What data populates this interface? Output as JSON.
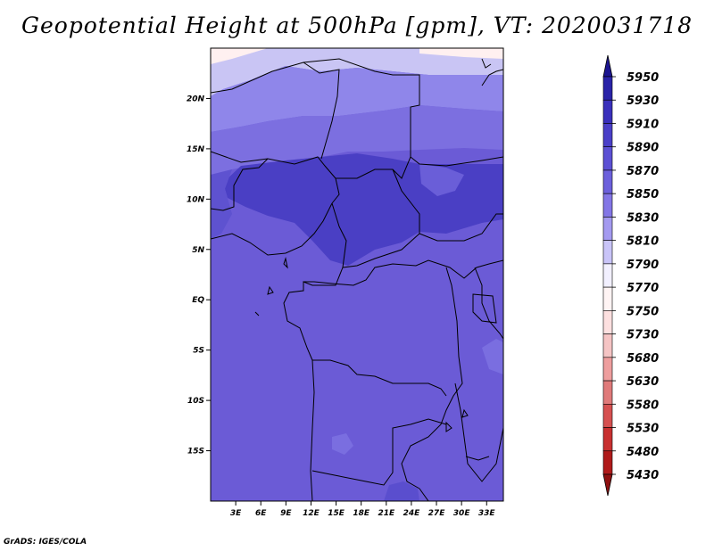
{
  "title": "Geopotential Height at 500hPa [gpm], VT: 2020031718",
  "credit": "GrADS: IGES/COLA",
  "map": {
    "lat_labels": [
      "20N",
      "15N",
      "10N",
      "5N",
      "EQ",
      "5S",
      "10S",
      "15S"
    ],
    "lon_labels": [
      "3E",
      "6E",
      "9E",
      "12E",
      "15E",
      "18E",
      "21E",
      "24E",
      "27E",
      "30E",
      "33E"
    ],
    "lat_range": [
      -20,
      25
    ],
    "lon_range": [
      0,
      35
    ],
    "colors": {
      "ocean_fill": "#6b5bd6",
      "tropical_max": "#4a3fc4",
      "sahara_band": "#8f86ea",
      "north_band": "#c9c5f4",
      "top_edge": "#fff0f0",
      "coast_line": "#000000"
    }
  },
  "colorbar": {
    "labels": [
      "5950",
      "5930",
      "5910",
      "5890",
      "5870",
      "5850",
      "5830",
      "5810",
      "5790",
      "5770",
      "5750",
      "5730",
      "5680",
      "5630",
      "5580",
      "5530",
      "5480",
      "5430"
    ],
    "colors": [
      "#1c1590",
      "#2a23a8",
      "#3a30bc",
      "#4a3fc8",
      "#5c50d4",
      "#6c60dc",
      "#8376e6",
      "#a49af0",
      "#c9c4f8",
      "#f2f0ff",
      "#fff4f4",
      "#fde0e0",
      "#f5c4c4",
      "#ee9e9e",
      "#e07a7a",
      "#d65050",
      "#c83030",
      "#b01a1a",
      "#8e1010"
    ]
  }
}
